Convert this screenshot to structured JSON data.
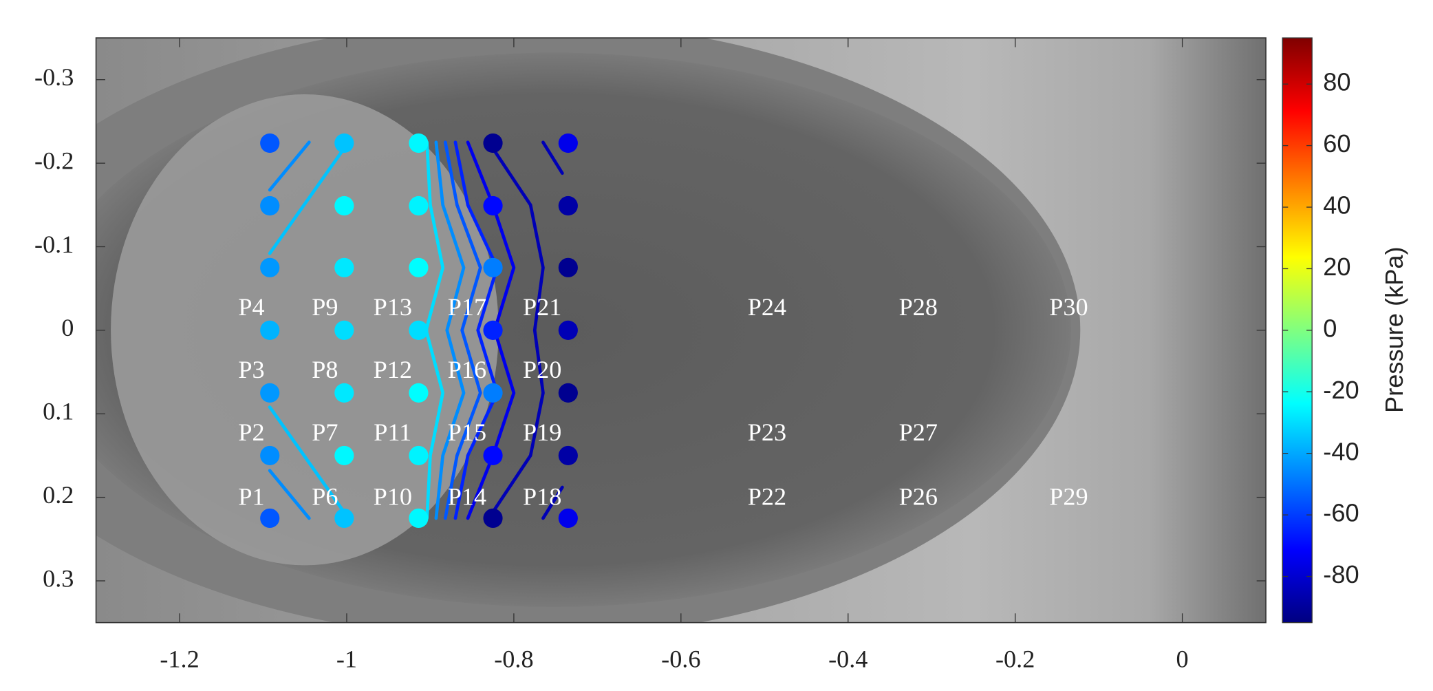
{
  "chart_data": {
    "type": "scatter",
    "xlim": [
      -1.3,
      0.1
    ],
    "xticks": [
      -1.2,
      -1,
      -0.8,
      -0.6,
      -0.4,
      -0.2,
      0
    ],
    "ylim": [
      -0.35,
      0.35
    ],
    "yticks": [
      -0.3,
      -0.2,
      -0.1,
      0,
      0.1,
      0.2,
      0.3
    ],
    "y_reversed": true,
    "x": [
      -1.092,
      -1.092,
      -1.092,
      -1.092,
      -1.092,
      -1.092,
      -1.092,
      -1.003,
      -1.003,
      -1.003,
      -1.003,
      -1.003,
      -1.003,
      -1.003,
      -0.914,
      -0.914,
      -0.914,
      -0.914,
      -0.914,
      -0.914,
      -0.914,
      -0.825,
      -0.825,
      -0.825,
      -0.825,
      -0.825,
      -0.825,
      -0.825,
      -0.735,
      -0.735,
      -0.735,
      -0.735,
      -0.735,
      -0.735,
      -0.735
    ],
    "y": [
      -0.224,
      -0.149,
      -0.075,
      0,
      0.075,
      0.15,
      0.225,
      -0.224,
      -0.149,
      -0.075,
      0,
      0.075,
      0.15,
      0.225,
      -0.224,
      -0.149,
      -0.075,
      0,
      0.075,
      0.15,
      0.225,
      -0.224,
      -0.149,
      -0.075,
      0,
      0.075,
      0.15,
      0.225,
      -0.224,
      -0.149,
      -0.075,
      0,
      0.075,
      0.15,
      0.225
    ],
    "values": [
      -55,
      -45,
      -43,
      -38,
      -43,
      -45,
      -55,
      -35,
      -25,
      -28,
      -30,
      -28,
      -25,
      -35,
      -25,
      -26,
      -24,
      -30,
      -24,
      -26,
      -25,
      -92,
      -70,
      -48,
      -65,
      -48,
      -70,
      -92,
      -75,
      -88,
      -92,
      -85,
      -92,
      -88,
      -75
    ],
    "contours": [
      {
        "level": -45,
        "x": [
          -1.092,
          -1.045,
          null,
          -1.092,
          -1.045
        ],
        "y": [
          -0.168,
          -0.225,
          null,
          0.168,
          0.225
        ]
      },
      {
        "level": -35,
        "x": [
          -1.092,
          -1.003,
          null,
          -1.092,
          -1.003
        ],
        "y": [
          -0.092,
          -0.218,
          null,
          0.092,
          0.218
        ]
      },
      {
        "level": -30,
        "x": [
          -0.904,
          -0.9,
          -0.885,
          -0.905,
          -0.885,
          -0.9,
          -0.904
        ],
        "y": [
          -0.225,
          -0.15,
          -0.075,
          0,
          0.075,
          0.15,
          0.225
        ]
      },
      {
        "level": -45,
        "x": [
          -0.893,
          -0.885,
          -0.86,
          -0.88,
          -0.86,
          -0.885,
          -0.893
        ],
        "y": [
          -0.225,
          -0.15,
          -0.075,
          0,
          0.075,
          0.15,
          0.225
        ]
      },
      {
        "level": -55,
        "x": [
          -0.882,
          -0.868,
          -0.84,
          -0.862,
          -0.84,
          -0.868,
          -0.882
        ],
        "y": [
          -0.225,
          -0.15,
          -0.075,
          0,
          0.075,
          0.15,
          0.225
        ]
      },
      {
        "level": -65,
        "x": [
          -0.87,
          -0.855,
          -0.82,
          -0.843,
          -0.82,
          -0.855,
          -0.87
        ],
        "y": [
          -0.225,
          -0.15,
          -0.075,
          0,
          0.075,
          0.15,
          0.225
        ]
      },
      {
        "level": -75,
        "x": [
          -0.855,
          -0.825,
          -0.8,
          -0.823,
          -0.8,
          -0.825,
          -0.855
        ],
        "y": [
          -0.225,
          -0.15,
          -0.075,
          0,
          0.075,
          0.15,
          0.225
        ]
      },
      {
        "level": -85,
        "x": [
          -0.83,
          -0.78,
          -0.765,
          -0.775,
          -0.765,
          -0.78,
          -0.83
        ],
        "y": [
          -0.225,
          -0.15,
          -0.075,
          0,
          0.075,
          0.15,
          0.225
        ]
      },
      {
        "level": -85,
        "x": [
          -0.765,
          -0.742,
          null,
          -0.765,
          -0.742
        ],
        "y": [
          -0.225,
          -0.188,
          null,
          0.225,
          0.188
        ]
      }
    ],
    "annotations": [
      {
        "text": "P1",
        "x": -1.114,
        "y": 0.202
      },
      {
        "text": "P2",
        "x": -1.114,
        "y": 0.125
      },
      {
        "text": "P3",
        "x": -1.114,
        "y": 0.05
      },
      {
        "text": "P4",
        "x": -1.114,
        "y": -0.025
      },
      {
        "text": "P6",
        "x": -1.026,
        "y": 0.202
      },
      {
        "text": "P7",
        "x": -1.026,
        "y": 0.125
      },
      {
        "text": "P8",
        "x": -1.026,
        "y": 0.05
      },
      {
        "text": "P9",
        "x": -1.026,
        "y": -0.025
      },
      {
        "text": "P10",
        "x": -0.945,
        "y": 0.202
      },
      {
        "text": "P11",
        "x": -0.945,
        "y": 0.125
      },
      {
        "text": "P12",
        "x": -0.945,
        "y": 0.05
      },
      {
        "text": "P13",
        "x": -0.945,
        "y": -0.025
      },
      {
        "text": "P14",
        "x": -0.856,
        "y": 0.202
      },
      {
        "text": "P15",
        "x": -0.856,
        "y": 0.125
      },
      {
        "text": "P16",
        "x": -0.856,
        "y": 0.05
      },
      {
        "text": "P17",
        "x": -0.856,
        "y": -0.025
      },
      {
        "text": "P18",
        "x": -0.766,
        "y": 0.202
      },
      {
        "text": "P19",
        "x": -0.766,
        "y": 0.125
      },
      {
        "text": "P20",
        "x": -0.766,
        "y": 0.05
      },
      {
        "text": "P21",
        "x": -0.766,
        "y": -0.025
      },
      {
        "text": "P22",
        "x": -0.497,
        "y": 0.202
      },
      {
        "text": "P23",
        "x": -0.497,
        "y": 0.125
      },
      {
        "text": "P24",
        "x": -0.497,
        "y": -0.025
      },
      {
        "text": "P26",
        "x": -0.316,
        "y": 0.202
      },
      {
        "text": "P27",
        "x": -0.316,
        "y": 0.125
      },
      {
        "text": "P28",
        "x": -0.316,
        "y": -0.025
      },
      {
        "text": "P29",
        "x": -0.136,
        "y": 0.202
      },
      {
        "text": "P30",
        "x": -0.136,
        "y": -0.025
      }
    ],
    "colorbar": {
      "label": "Pressure (kPa)",
      "colormap": "jet",
      "clim": [
        -95,
        95
      ],
      "ticks": [
        -80,
        -60,
        -40,
        -20,
        0,
        20,
        40,
        60,
        80
      ]
    }
  }
}
